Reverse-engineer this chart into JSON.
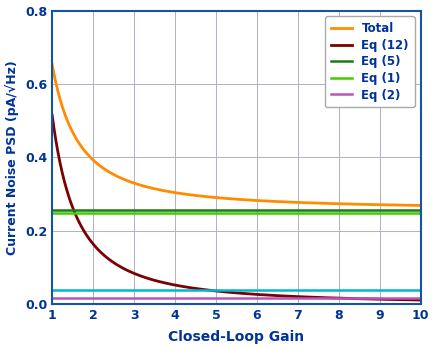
{
  "title": "",
  "xlabel": "Closed-Loop Gain",
  "ylabel": "Current Noise PSD (pA/√Hz)",
  "xlim": [
    1,
    10
  ],
  "ylim": [
    0,
    0.8
  ],
  "xticks": [
    1,
    2,
    3,
    4,
    5,
    6,
    7,
    8,
    9,
    10
  ],
  "yticks": [
    0,
    0.2,
    0.4,
    0.6,
    0.8
  ],
  "lines": [
    {
      "label": "Total",
      "color": "#FF8C00",
      "type": "curve",
      "a": 0.395,
      "b": 0.258,
      "c": 1.55
    },
    {
      "label": "Eq (12)",
      "color": "#7B0000",
      "type": "curve",
      "a": 0.515,
      "b": 0.0,
      "c": 1.65
    },
    {
      "label": "Eq (5)",
      "color": "#1a7a1a",
      "type": "hline",
      "value": 0.258
    },
    {
      "label": "Eq (1)",
      "color": "#44cc00",
      "type": "hline",
      "value": 0.248
    },
    {
      "label": "Eq (2)",
      "color": "#bb55bb",
      "type": "hline",
      "value": 0.016
    }
  ],
  "extra_hlines": [
    {
      "color": "#00b8cc",
      "value": 0.04
    }
  ],
  "background_color": "#ffffff",
  "grid_color": "#b0b0cc",
  "axis_label_color": "#003399",
  "tick_label_color": "#003399",
  "legend_text_color": "#003399",
  "curve_linewidth": 2.0,
  "hline_linewidth": 1.8
}
